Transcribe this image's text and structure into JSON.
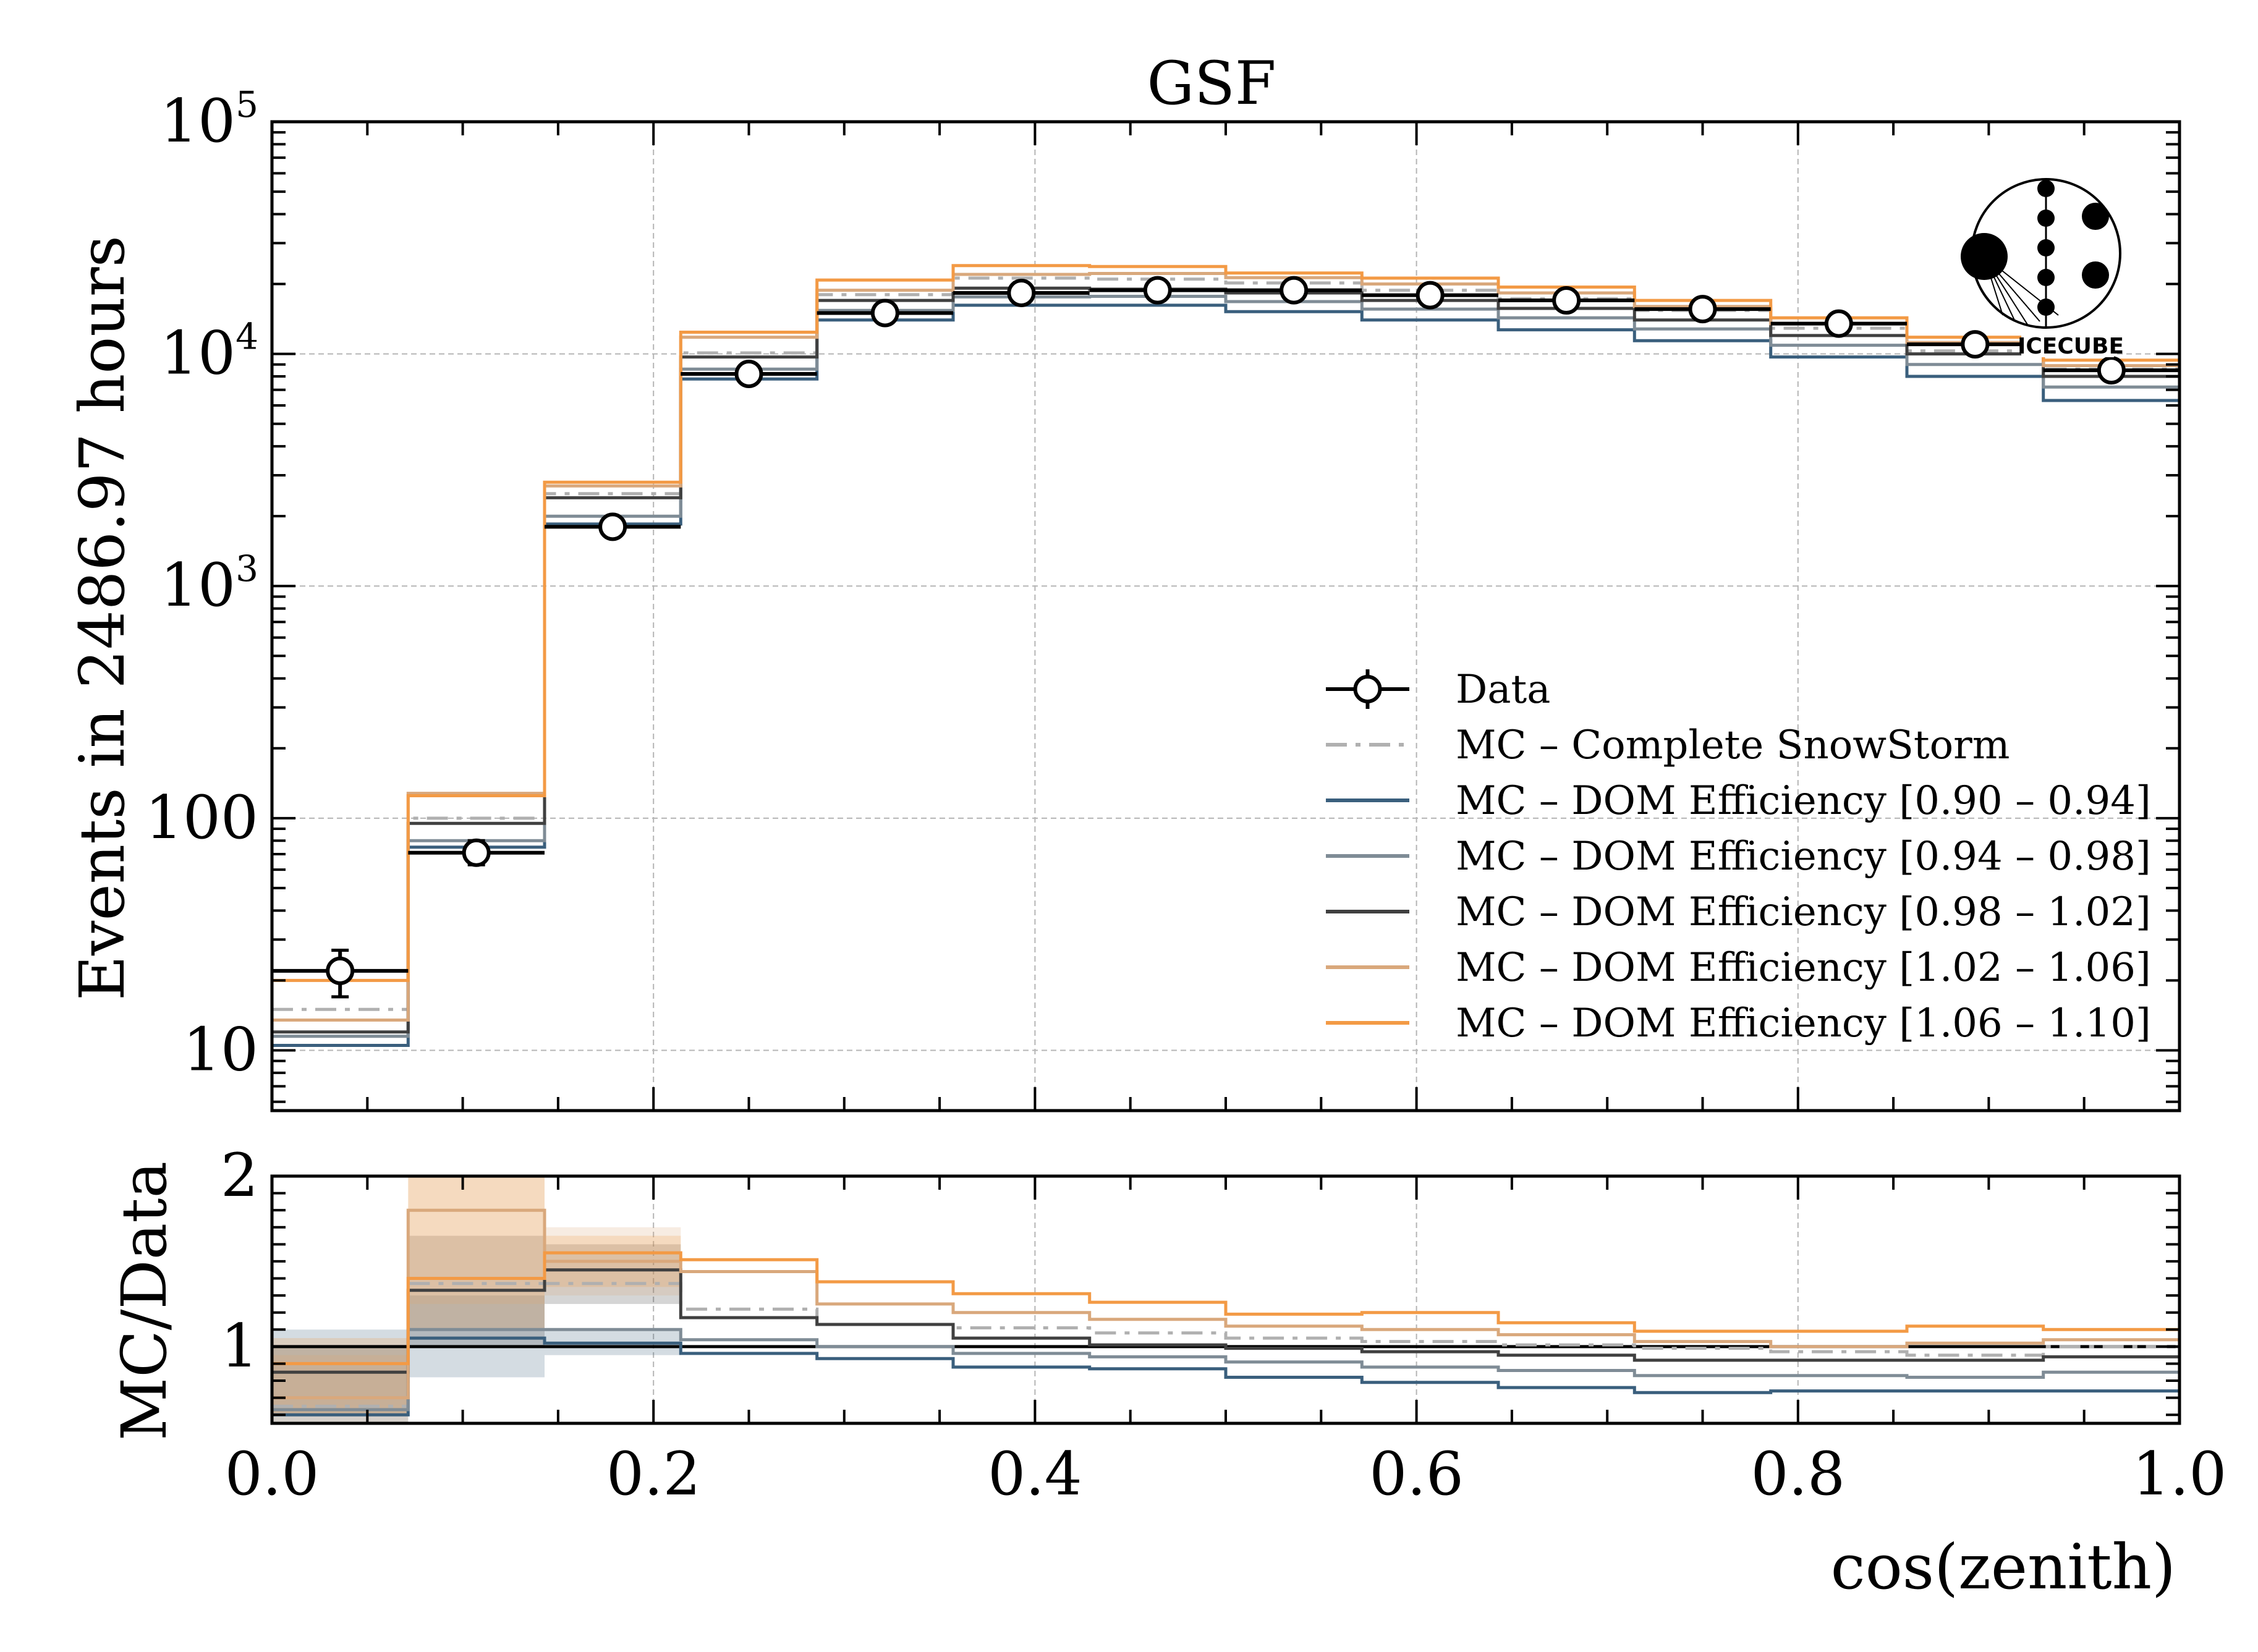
{
  "chart_data": [
    {
      "type": "step-histogram",
      "panel": "main",
      "title": "GSF",
      "xlabel": "",
      "ylabel": "Events in 2486.97 hours",
      "xlim": [
        0.0,
        1.0
      ],
      "ylim": [
        5.5,
        100000
      ],
      "yscale": "log",
      "yticks": [
        {
          "value": 10,
          "label": "10",
          "sup": ""
        },
        {
          "value": 100,
          "label": "100",
          "sup": ""
        },
        {
          "value": 1000,
          "label": "10",
          "sup": "3"
        },
        {
          "value": 10000,
          "label": "10",
          "sup": "4"
        },
        {
          "value": 100000,
          "label": "10",
          "sup": "5"
        }
      ],
      "grid": true,
      "legend_position": "lower-right",
      "bin_edges": [
        0.0,
        0.0714,
        0.1429,
        0.2143,
        0.2857,
        0.3571,
        0.4286,
        0.5,
        0.5714,
        0.6429,
        0.7143,
        0.7857,
        0.8571,
        0.9286,
        1.0
      ],
      "data": {
        "name": "Data",
        "values": [
          22,
          71,
          1800,
          8200,
          15000,
          18300,
          18800,
          18800,
          17900,
          17000,
          15600,
          13500,
          11000,
          8500
        ],
        "err_low": [
          17,
          63,
          1720,
          8020,
          14750,
          18000,
          18500,
          18500,
          17600,
          16700,
          15350,
          13250,
          10800,
          8350
        ],
        "err_high": [
          27,
          80,
          1880,
          8400,
          15250,
          18600,
          19100,
          19100,
          18200,
          17300,
          15850,
          13750,
          11200,
          8650
        ]
      },
      "series": [
        {
          "name": "MC – Complete SnowStorm",
          "color": "#b0b0b0",
          "style": "dashdot",
          "values": [
            15,
            100,
            2500,
            10100,
            18000,
            21200,
            21000,
            20200,
            18800,
            17300,
            15400,
            12900,
            10300,
            8600
          ]
        },
        {
          "name": "MC – DOM Efficiency [0.90 – 0.94]",
          "color": "#3a5f7d",
          "style": "solid",
          "values": [
            10.5,
            75,
            1850,
            7800,
            14000,
            16200,
            16200,
            15200,
            14000,
            12700,
            11400,
            9700,
            8000,
            6300
          ]
        },
        {
          "name": "MC – DOM Efficiency [0.94 – 0.98]",
          "color": "#7f8c96",
          "style": "solid",
          "values": [
            11.5,
            80,
            2000,
            8600,
            15400,
            17600,
            17700,
            16800,
            15600,
            14300,
            12800,
            10900,
            9000,
            7200
          ]
        },
        {
          "name": "MC – DOM Efficiency [0.98 – 1.02]",
          "color": "#404040",
          "style": "solid",
          "values": [
            12,
            95,
            2400,
            9700,
            17000,
            19200,
            19000,
            18300,
            17000,
            15700,
            14000,
            12000,
            10000,
            8000
          ]
        },
        {
          "name": "MC – DOM Efficiency [1.02 – 1.06]",
          "color": "#d9a87c",
          "style": "solid",
          "values": [
            13.5,
            128,
            2700,
            11800,
            18800,
            22000,
            22200,
            21300,
            20000,
            18300,
            16000,
            13500,
            11200,
            8900
          ]
        },
        {
          "name": "MC – DOM Efficiency [1.06 – 1.10]",
          "color": "#f39a45",
          "style": "solid",
          "values": [
            20,
            125,
            2800,
            12400,
            20800,
            24000,
            23800,
            22300,
            21200,
            19400,
            17000,
            14300,
            11800,
            9400
          ]
        }
      ]
    },
    {
      "type": "ratio-step",
      "panel": "ratio",
      "xlabel": "cos(zenith)",
      "ylabel": "MC/Data",
      "xlim": [
        0.0,
        1.0
      ],
      "ylim": [
        0.55,
        2.0
      ],
      "yticks": [
        {
          "value": 1,
          "label": "1"
        },
        {
          "value": 2,
          "label": "2"
        }
      ],
      "xticks": [
        {
          "value": 0.0,
          "label": "0.0"
        },
        {
          "value": 0.2,
          "label": "0.2"
        },
        {
          "value": 0.4,
          "label": "0.4"
        },
        {
          "value": 0.6,
          "label": "0.6"
        },
        {
          "value": 0.8,
          "label": "0.8"
        },
        {
          "value": 1.0,
          "label": "1.0"
        }
      ],
      "grid": true,
      "series": [
        {
          "name": "MC – Complete SnowStorm",
          "values": [
            0.65,
            1.37,
            1.37,
            1.22,
            1.13,
            1.11,
            1.08,
            1.05,
            1.03,
            1.01,
            0.99,
            0.97,
            0.95,
            1.0
          ]
        },
        {
          "name": "MC – DOM Efficiency [0.90 – 0.94]",
          "values": [
            0.6,
            1.05,
            1.02,
            0.96,
            0.93,
            0.88,
            0.87,
            0.82,
            0.79,
            0.76,
            0.73,
            0.74,
            0.74,
            0.74
          ]
        },
        {
          "name": "MC – DOM Efficiency [0.94 – 0.98]",
          "values": [
            0.63,
            1.1,
            1.1,
            1.04,
            1.0,
            0.96,
            0.94,
            0.91,
            0.88,
            0.86,
            0.83,
            0.83,
            0.82,
            0.85
          ]
        },
        {
          "name": "MC – DOM Efficiency [0.98 – 1.02]",
          "values": [
            0.85,
            1.33,
            1.45,
            1.17,
            1.13,
            1.05,
            1.01,
            0.99,
            0.97,
            0.95,
            0.92,
            0.92,
            0.92,
            0.94
          ]
        },
        {
          "name": "MC – DOM Efficiency [1.02 – 1.06]",
          "values": [
            0.7,
            1.8,
            1.5,
            1.44,
            1.25,
            1.2,
            1.16,
            1.12,
            1.1,
            1.07,
            1.03,
            1.0,
            1.02,
            1.04
          ]
        },
        {
          "name": "MC – DOM Efficiency [1.06 – 1.10]",
          "values": [
            0.9,
            1.4,
            1.55,
            1.51,
            1.38,
            1.31,
            1.26,
            1.19,
            1.2,
            1.14,
            1.09,
            1.09,
            1.12,
            1.1
          ]
        }
      ],
      "bands": [
        {
          "name": "MC – DOM Efficiency [0.90 – 0.94]",
          "color": "#3a5f7d",
          "low": [
            0.55,
            0.82,
            0.95
          ],
          "high": [
            1.1,
            1.3,
            1.1
          ]
        },
        {
          "name": "MC – DOM Efficiency [0.98 – 1.02]",
          "color": "#404040",
          "low": [
            0.6,
            1.0,
            1.25
          ],
          "high": [
            1.0,
            1.65,
            1.6
          ]
        },
        {
          "name": "MC – DOM Efficiency [1.02 – 1.06]",
          "color": "#d9a87c",
          "low": [
            0.55,
            1.25,
            1.3
          ],
          "high": [
            0.95,
            2.0,
            1.7
          ]
        },
        {
          "name": "MC – DOM Efficiency [1.06 – 1.10]",
          "color": "#f39a45",
          "low": [
            0.6,
            1.1,
            1.35
          ],
          "high": [
            1.05,
            2.0,
            1.65
          ]
        }
      ]
    }
  ],
  "logo": {
    "icon": "icecube-logo",
    "text": "ICECUBE"
  }
}
